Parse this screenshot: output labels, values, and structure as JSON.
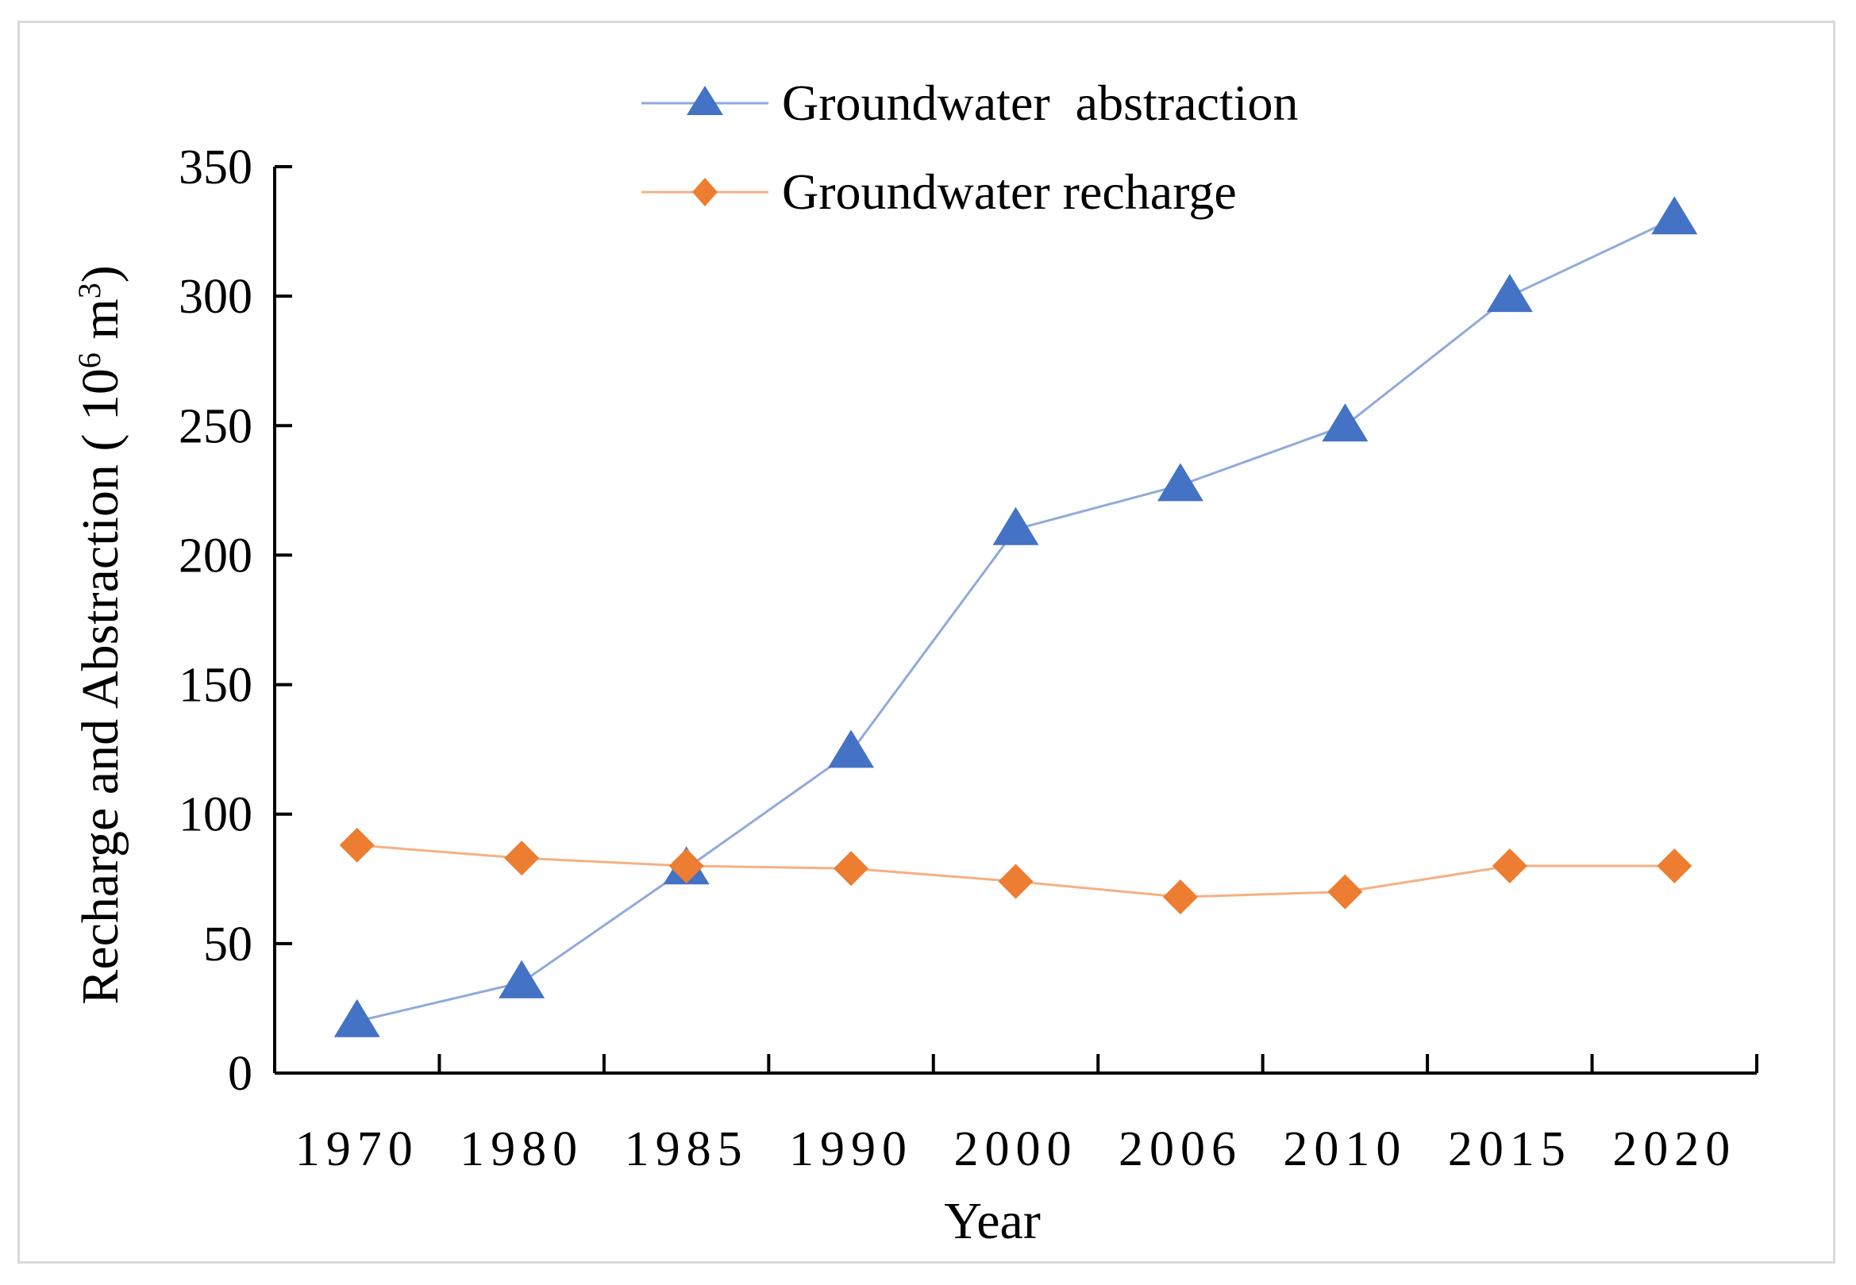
{
  "chart_data": {
    "type": "line",
    "title": "",
    "xlabel": "Year",
    "ylabel": "Recharge and Abstraction ( 10",
    "ylabel_sup": "6",
    "ylabel_unit": " m",
    "ylabel_unit_sup": "3",
    "ylabel_end": ")",
    "categories": [
      "1970",
      "1980",
      "1985",
      "1990",
      "2000",
      "2006",
      "2010",
      "2015",
      "2020"
    ],
    "ylim": [
      0,
      350
    ],
    "yticks": [
      "0",
      "50",
      "100",
      "150",
      "200",
      "250",
      "300",
      "350"
    ],
    "grid": false,
    "legend_position": "top-center",
    "series": [
      {
        "name": "Groundwater  abstraction",
        "marker": "triangle",
        "color": "#4472c4",
        "line_color": "#8faadc",
        "values": [
          20,
          35,
          79,
          124,
          210,
          227,
          250,
          300,
          330
        ]
      },
      {
        "name": "Groundwater recharge",
        "marker": "diamond",
        "color": "#ed7d31",
        "line_color": "#f4b183",
        "values": [
          88,
          83,
          80,
          79,
          74,
          68,
          70,
          80,
          80
        ]
      }
    ]
  }
}
